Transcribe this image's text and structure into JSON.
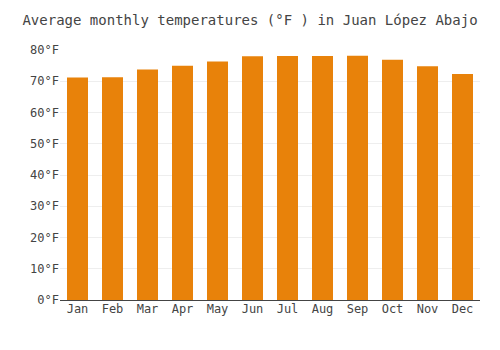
{
  "chart_data": {
    "type": "bar",
    "title": "Average monthly temperatures (°F ) in Juan López Abajo",
    "categories": [
      "Jan",
      "Feb",
      "Mar",
      "Apr",
      "May",
      "Jun",
      "Jul",
      "Aug",
      "Sep",
      "Oct",
      "Nov",
      "Dec"
    ],
    "values": [
      71.2,
      71.3,
      73.8,
      75.0,
      76.3,
      78.0,
      78.1,
      78.1,
      78.2,
      76.9,
      74.8,
      72.3
    ],
    "color": "#E8820A",
    "ylim": [
      0,
      80
    ],
    "yticks": [
      {
        "value": 0,
        "label": "0°F"
      },
      {
        "value": 10,
        "label": "10°F"
      },
      {
        "value": 20,
        "label": "20°F"
      },
      {
        "value": 30,
        "label": "30°F"
      },
      {
        "value": 40,
        "label": "40°F"
      },
      {
        "value": 50,
        "label": "50°F"
      },
      {
        "value": 60,
        "label": "60°F"
      },
      {
        "value": 70,
        "label": "70°F"
      },
      {
        "value": 80,
        "label": "80°F"
      }
    ],
    "grid": true
  }
}
